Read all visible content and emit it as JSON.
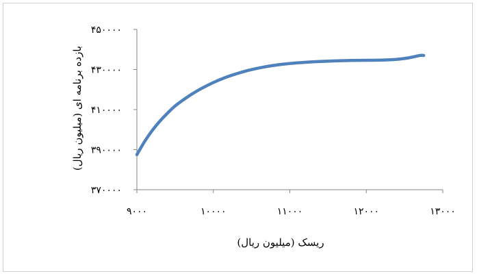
{
  "chart_data": {
    "type": "line",
    "title": "",
    "xlabel": "ریسک (میلیون ریال)",
    "ylabel": "بازده برنامه ای (میلیون ریال)",
    "xlim": [
      9000,
      13000
    ],
    "ylim": [
      370000,
      450000
    ],
    "x_ticks": [
      9000,
      10000,
      11000,
      12000,
      13000
    ],
    "y_ticks": [
      370000,
      390000,
      410000,
      430000,
      450000
    ],
    "x_tick_labels": [
      "۹۰۰۰",
      "۱۰۰۰۰",
      "۱۱۰۰۰",
      "۱۲۰۰۰",
      "۱۳۰۰۰"
    ],
    "y_tick_labels": [
      "۳۷۰۰۰۰",
      "۳۹۰۰۰۰",
      "۴۱۰۰۰۰",
      "۴۳۰۰۰۰",
      "۴۵۰۰۰۰"
    ],
    "grid": false,
    "legend": "none",
    "series": [
      {
        "color": "#4f81bd",
        "x": [
          9000,
          9100,
          9200,
          9300,
          9400,
          9500,
          9650,
          9800,
          10000,
          10200,
          10400,
          10600,
          10800,
          11000,
          11200,
          11400,
          11600,
          11800,
          12000,
          12200,
          12400,
          12550,
          12700,
          12750
        ],
        "y": [
          387500,
          394000,
          399500,
          404200,
          408200,
          411800,
          416000,
          419600,
          423500,
          426600,
          429000,
          430800,
          432100,
          433000,
          433600,
          434000,
          434300,
          434500,
          434600,
          434700,
          435100,
          435800,
          437000,
          437000
        ]
      }
    ]
  }
}
